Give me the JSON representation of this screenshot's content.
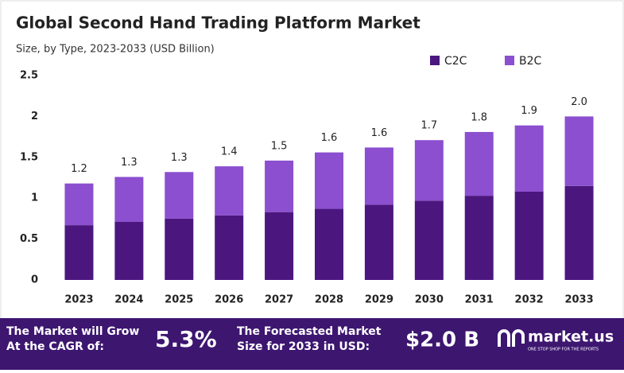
{
  "chart_data": {
    "type": "stacked-bar",
    "title": "Global Second Hand Trading Platform Market",
    "subtitle": "Size, by Type, 2023-2033 (USD Billion)",
    "categories": [
      "2023",
      "2024",
      "2025",
      "2026",
      "2027",
      "2028",
      "2029",
      "2030",
      "2031",
      "2032",
      "2033"
    ],
    "series": [
      {
        "name": "C2C",
        "color": "#4b177f",
        "values": [
          0.67,
          0.71,
          0.75,
          0.79,
          0.83,
          0.87,
          0.92,
          0.97,
          1.03,
          1.08,
          1.15
        ]
      },
      {
        "name": "B2C",
        "color": "#8b4fcf",
        "values": [
          0.51,
          0.55,
          0.57,
          0.6,
          0.63,
          0.69,
          0.7,
          0.74,
          0.78,
          0.81,
          0.85
        ]
      }
    ],
    "total_labels": [
      "1.2",
      "1.3",
      "1.3",
      "1.4",
      "1.5",
      "1.6",
      "1.6",
      "1.7",
      "1.8",
      "1.9",
      "2.0"
    ],
    "ylim": [
      0,
      2.5
    ],
    "yticks": [
      0,
      0.5,
      1,
      1.5,
      2,
      2.5
    ],
    "grid": false
  },
  "footer": {
    "cagr_text": "The Market will Grow At the CAGR of:",
    "cagr_value": "5.3%",
    "forecast_text": "The Forecasted Market Size for 2033 in USD:",
    "forecast_value": "$2.0 B",
    "logo": "market.us",
    "tagline": "ONE STOP SHOP FOR THE REPORTS"
  }
}
